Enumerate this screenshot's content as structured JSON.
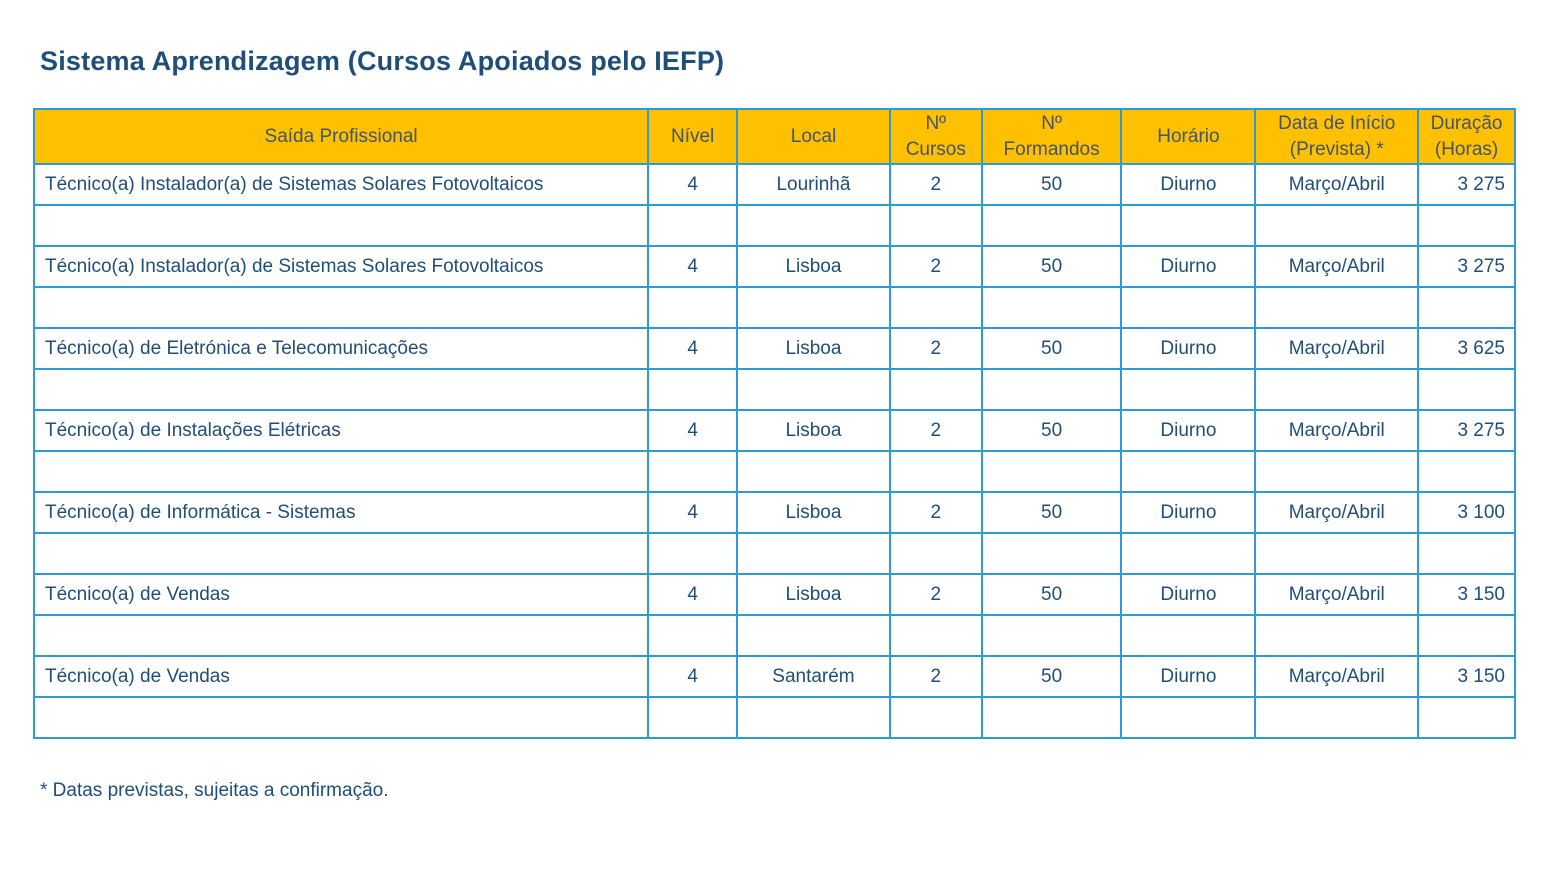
{
  "title": "Sistema Aprendizagem (Cursos Apoiados pelo IEFP)",
  "footnote": "* Datas previstas, sujeitas a confirmação.",
  "colors": {
    "header_bg": "#FFC000",
    "header_text": "#44546A",
    "border": "#2E9BD5",
    "body_text": "#1F4E79",
    "title_text": "#1F4E79"
  },
  "table": {
    "columns": [
      {
        "key": "saida",
        "label": "Saída Profissional",
        "width_pct": 41.47
      },
      {
        "key": "nivel",
        "label": "Nível",
        "width_pct": 6.0
      },
      {
        "key": "local",
        "label": "Local",
        "width_pct": 10.32
      },
      {
        "key": "cursos",
        "label": "Nº Cursos",
        "width_pct": 6.2
      },
      {
        "key": "formandos",
        "label": "Nº Formandos",
        "width_pct": 9.44
      },
      {
        "key": "horario",
        "label": "Horário",
        "width_pct": 9.04
      },
      {
        "key": "inicio",
        "label": "Data de Início (Prevista) *",
        "width_pct": 10.99
      },
      {
        "key": "duracao",
        "label": "Duração (Horas)",
        "width_pct": 6.54
      }
    ],
    "spacer_row_after_each": true,
    "rows": [
      {
        "saida": "Técnico(a) Instalador(a) de Sistemas Solares Fotovoltaicos",
        "nivel": "4",
        "local": "Lourinhã",
        "cursos": "2",
        "formandos": "50",
        "horario": "Diurno",
        "inicio": "Março/Abril",
        "duracao": "3 275"
      },
      {
        "saida": "Técnico(a) Instalador(a) de Sistemas Solares Fotovoltaicos",
        "nivel": "4",
        "local": "Lisboa",
        "cursos": "2",
        "formandos": "50",
        "horario": "Diurno",
        "inicio": "Março/Abril",
        "duracao": "3 275"
      },
      {
        "saida": "Técnico(a) de Eletrónica e Telecomunicações",
        "nivel": "4",
        "local": "Lisboa",
        "cursos": "2",
        "formandos": "50",
        "horario": "Diurno",
        "inicio": "Março/Abril",
        "duracao": "3 625"
      },
      {
        "saida": "Técnico(a) de Instalações Elétricas",
        "nivel": "4",
        "local": "Lisboa",
        "cursos": "2",
        "formandos": "50",
        "horario": "Diurno",
        "inicio": "Março/Abril",
        "duracao": "3 275"
      },
      {
        "saida": "Técnico(a) de Informática - Sistemas",
        "nivel": "4",
        "local": "Lisboa",
        "cursos": "2",
        "formandos": "50",
        "horario": "Diurno",
        "inicio": "Março/Abril",
        "duracao": "3 100"
      },
      {
        "saida": "Técnico(a) de Vendas",
        "nivel": "4",
        "local": "Lisboa",
        "cursos": "2",
        "formandos": "50",
        "horario": "Diurno",
        "inicio": "Março/Abril",
        "duracao": "3 150"
      },
      {
        "saida": "Técnico(a) de Vendas",
        "nivel": "4",
        "local": "Santarém",
        "cursos": "2",
        "formandos": "50",
        "horario": "Diurno",
        "inicio": "Março/Abril",
        "duracao": "3 150"
      }
    ]
  }
}
